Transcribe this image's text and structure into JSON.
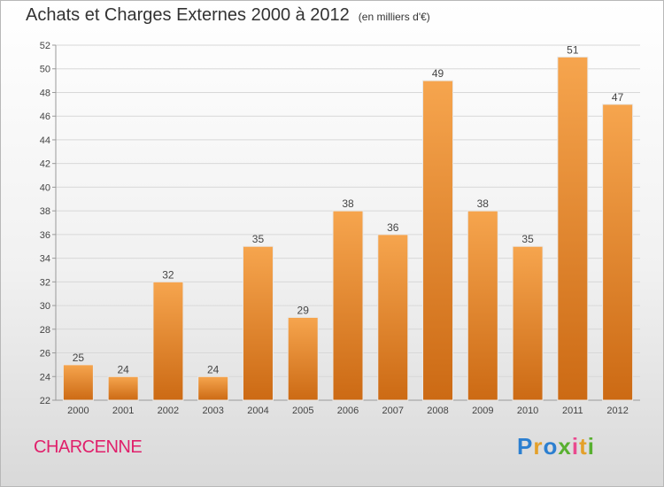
{
  "title": "Achats et Charges Externes 2000 à 2012",
  "subtitle": "(en milliers d'€)",
  "place": "CHARCENNE",
  "brand": [
    "P",
    "r",
    "o",
    "x",
    "i",
    "t",
    "i"
  ],
  "brand_colors": [
    "#2c7fd0",
    "#e4a02a",
    "#2c7fd0",
    "#58b030",
    "#e94a8f",
    "#e4a02a",
    "#58b030"
  ],
  "colors": {
    "bar_top": "#f6a54e",
    "bar_bottom": "#cc6a14",
    "grid": "#d8d8d8",
    "axis": "#999999"
  },
  "chart_data": {
    "type": "bar",
    "categories": [
      "2000",
      "2001",
      "2002",
      "2003",
      "2004",
      "2005",
      "2006",
      "2007",
      "2008",
      "2009",
      "2010",
      "2011",
      "2012"
    ],
    "values": [
      25,
      24,
      32,
      24,
      35,
      29,
      38,
      36,
      49,
      38,
      35,
      51,
      47
    ],
    "ylim": [
      22,
      52
    ],
    "yticks": [
      22,
      24,
      26,
      28,
      30,
      32,
      34,
      36,
      38,
      40,
      42,
      44,
      46,
      48,
      50,
      52
    ],
    "grid": true
  }
}
